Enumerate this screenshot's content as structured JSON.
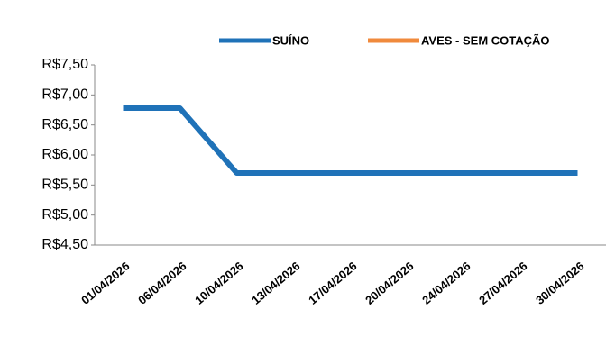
{
  "chart_data": {
    "type": "line",
    "categories": [
      "01/04/2026",
      "06/04/2026",
      "10/04/2026",
      "13/04/2026",
      "17/04/2026",
      "20/04/2026",
      "24/04/2026",
      "27/04/2026",
      "30/04/2026"
    ],
    "series": [
      {
        "name": "SUÍNO",
        "color": "#1f72b8",
        "values": [
          6.78,
          6.78,
          5.7,
          5.7,
          5.7,
          5.7,
          5.7,
          5.7,
          5.7
        ]
      },
      {
        "name": "AVES  - SEM COTAÇÃO",
        "color": "#f08a3c",
        "values": [
          null,
          null,
          null,
          null,
          null,
          null,
          null,
          null,
          null
        ]
      }
    ],
    "ylim": [
      4.5,
      7.5
    ],
    "yticks": [
      {
        "value": 4.5,
        "label": "R$4,50"
      },
      {
        "value": 5.0,
        "label": "R$5,00"
      },
      {
        "value": 5.5,
        "label": "R$5,50"
      },
      {
        "value": 6.0,
        "label": "R$6,00"
      },
      {
        "value": 6.5,
        "label": "R$6,50"
      },
      {
        "value": 7.0,
        "label": "R$7,00"
      },
      {
        "value": 7.5,
        "label": "R$7,50"
      }
    ],
    "grid": false
  }
}
